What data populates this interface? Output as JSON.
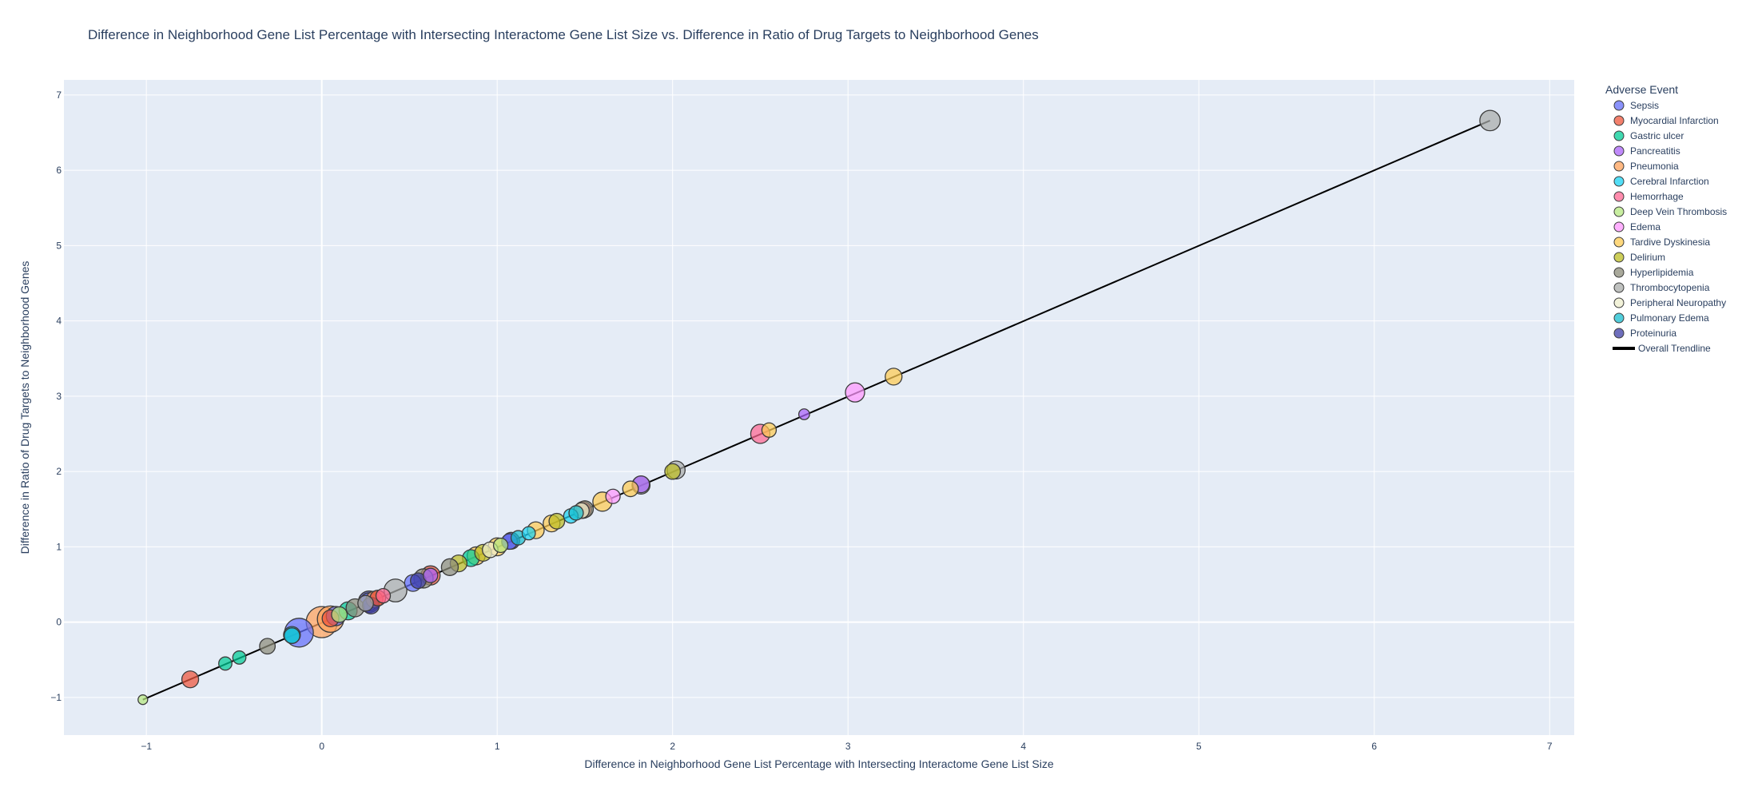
{
  "chart_data": {
    "type": "scatter",
    "title": "Difference in Neighborhood Gene List Percentage with Intersecting Interactome Gene List Size vs. Difference in Ratio of Drug Targets to Neighborhood Genes",
    "xlabel": "Difference in Neighborhood Gene List Percentage with Intersecting Interactome Gene List Size",
    "ylabel": "Difference in Ratio of Drug Targets to Neighborhood Genes",
    "xlim": [
      -1.47,
      7.14
    ],
    "ylim": [
      -1.5,
      7.2
    ],
    "x_ticks": [
      -1,
      0,
      1,
      2,
      3,
      4,
      5,
      6,
      7
    ],
    "y_ticks": [
      -1,
      0,
      1,
      2,
      3,
      4,
      5,
      6,
      7
    ],
    "x_tick_labels": [
      "−1",
      "0",
      "1",
      "2",
      "3",
      "4",
      "5",
      "6",
      "7"
    ],
    "y_tick_labels": [
      "−1",
      "0",
      "1",
      "2",
      "3",
      "4",
      "5",
      "6",
      "7"
    ],
    "grid": true,
    "legend_title": "Adverse Event",
    "legend_position": "right",
    "series": [
      {
        "name": "Sepsis",
        "color": "#636efa",
        "points": [
          [
            -0.13,
            -0.14,
            1.0
          ],
          [
            0.08,
            0.08,
            0.6
          ],
          [
            0.52,
            0.52,
            0.5
          ],
          [
            1.07,
            1.07,
            0.45
          ],
          [
            0.27,
            0.27,
            0.55
          ]
        ]
      },
      {
        "name": "Myocardial Infarction",
        "color": "#ef553b",
        "points": [
          [
            -0.75,
            -0.76,
            0.5
          ],
          [
            0.62,
            0.62,
            0.6
          ],
          [
            1.49,
            1.49,
            0.5
          ],
          [
            0.32,
            0.32,
            0.45
          ],
          [
            0.05,
            0.05,
            0.5
          ]
        ]
      },
      {
        "name": "Gastric ulcer",
        "color": "#00cc96",
        "points": [
          [
            -0.55,
            -0.55,
            0.35
          ],
          [
            -0.47,
            -0.47,
            0.35
          ],
          [
            0.15,
            0.15,
            0.55
          ],
          [
            0.85,
            0.85,
            0.5
          ]
        ]
      },
      {
        "name": "Pancreatitis",
        "color": "#ab63fa",
        "points": [
          [
            1.82,
            1.83,
            0.5
          ],
          [
            2.75,
            2.76,
            0.25
          ],
          [
            0.62,
            0.62,
            0.4
          ]
        ]
      },
      {
        "name": "Pneumonia",
        "color": "#ffa15a",
        "points": [
          [
            0.0,
            0.0,
            1.1
          ],
          [
            0.05,
            0.04,
            0.9
          ],
          [
            0.3,
            0.3,
            0.5
          ]
        ]
      },
      {
        "name": "Cerebral Infarction",
        "color": "#19d3f3",
        "points": [
          [
            -0.17,
            -0.17,
            0.5
          ],
          [
            1.42,
            1.41,
            0.4
          ],
          [
            1.18,
            1.18,
            0.35
          ]
        ]
      },
      {
        "name": "Hemorrhage",
        "color": "#ff6692",
        "points": [
          [
            2.5,
            2.5,
            0.6
          ],
          [
            0.35,
            0.35,
            0.4
          ]
        ]
      },
      {
        "name": "Deep Vein Thrombosis",
        "color": "#b6e880",
        "points": [
          [
            -1.02,
            -1.03,
            0.2
          ],
          [
            0.1,
            0.1,
            0.45
          ],
          [
            1.02,
            1.02,
            0.4
          ]
        ]
      },
      {
        "name": "Edema",
        "color": "#ff97ff",
        "points": [
          [
            3.04,
            3.05,
            0.6
          ],
          [
            1.66,
            1.67,
            0.4
          ]
        ]
      },
      {
        "name": "Tardive Dyskinesia",
        "color": "#fecb52",
        "points": [
          [
            3.26,
            3.26,
            0.5
          ],
          [
            2.55,
            2.55,
            0.4
          ],
          [
            1.6,
            1.6,
            0.6
          ],
          [
            1.76,
            1.77,
            0.45
          ],
          [
            1.22,
            1.22,
            0.5
          ],
          [
            1.31,
            1.31,
            0.5
          ],
          [
            0.88,
            0.88,
            0.55
          ],
          [
            1.0,
            1.0,
            0.55
          ]
        ]
      },
      {
        "name": "Delirium",
        "color": "#bcbd22",
        "points": [
          [
            2.0,
            2.0,
            0.45
          ],
          [
            0.78,
            0.78,
            0.5
          ],
          [
            0.92,
            0.92,
            0.5
          ],
          [
            1.34,
            1.34,
            0.45
          ]
        ]
      },
      {
        "name": "Hyperlipidemia",
        "color": "#8c8c7a",
        "points": [
          [
            -0.31,
            -0.32,
            0.45
          ],
          [
            0.73,
            0.73,
            0.5
          ],
          [
            0.19,
            0.19,
            0.55
          ],
          [
            0.58,
            0.58,
            0.6
          ],
          [
            1.5,
            1.5,
            0.5
          ]
        ]
      },
      {
        "name": "Thrombocytopenia",
        "color": "#a9acaa",
        "points": [
          [
            6.66,
            6.66,
            0.65
          ],
          [
            0.42,
            0.42,
            0.75
          ],
          [
            1.82,
            1.82,
            0.55
          ],
          [
            2.02,
            2.02,
            0.55
          ],
          [
            0.25,
            0.25,
            0.45
          ]
        ]
      },
      {
        "name": "Peripheral Neuropathy",
        "color": "#eeeecc",
        "points": [
          [
            1.48,
            1.48,
            0.45
          ],
          [
            0.96,
            0.96,
            0.45
          ]
        ]
      },
      {
        "name": "Pulmonary Edema",
        "color": "#17becf",
        "points": [
          [
            1.12,
            1.12,
            0.4
          ],
          [
            1.45,
            1.45,
            0.4
          ],
          [
            -0.17,
            -0.18,
            0.45
          ]
        ]
      },
      {
        "name": "Proteinuria",
        "color": "#3d3da6",
        "points": [
          [
            0.27,
            0.27,
            0.7
          ],
          [
            0.28,
            0.22,
            0.5
          ],
          [
            1.08,
            1.08,
            0.5
          ],
          [
            0.55,
            0.55,
            0.45
          ]
        ]
      }
    ],
    "trendline": {
      "name": "Overall Trendline",
      "color": "#000000",
      "x": [
        -1.02,
        6.66
      ],
      "y": [
        -1.03,
        6.66
      ]
    }
  }
}
